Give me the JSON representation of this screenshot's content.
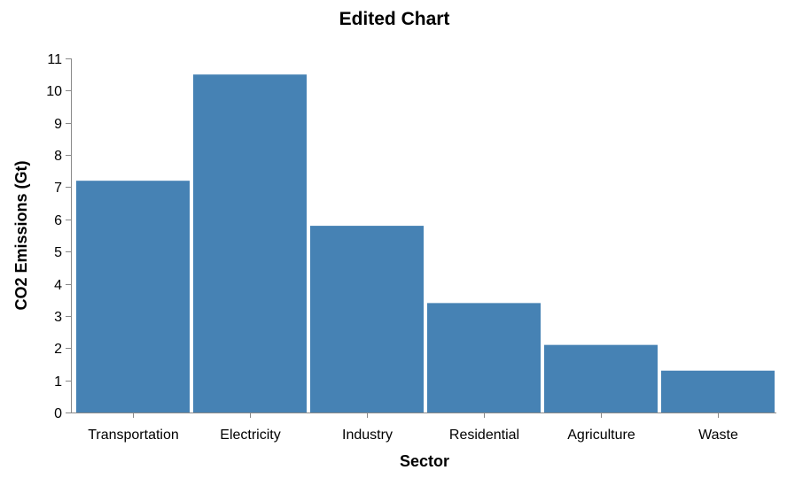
{
  "colors": {
    "bar": "#4682b4",
    "axis": "#888888"
  },
  "chart_data": {
    "type": "bar",
    "title": "Edited Chart",
    "xlabel": "Sector",
    "ylabel": "CO2 Emissions (Gt)",
    "categories": [
      "Transportation",
      "Electricity",
      "Industry",
      "Residential",
      "Agriculture",
      "Waste"
    ],
    "values": [
      7.2,
      10.5,
      5.8,
      3.4,
      2.1,
      1.3
    ],
    "ylim": [
      0,
      11
    ],
    "yticks": [
      0,
      1,
      2,
      3,
      4,
      5,
      6,
      7,
      8,
      9,
      10,
      11
    ],
    "grid": false,
    "legend": "none"
  }
}
